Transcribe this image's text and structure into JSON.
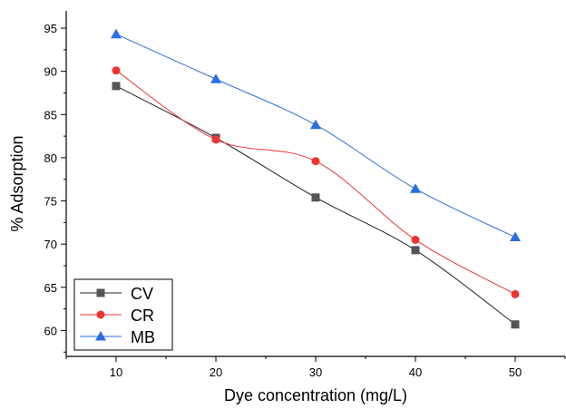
{
  "chart_data": {
    "type": "line",
    "title": "",
    "xlabel": "Dye concentration (mg/L)",
    "ylabel": "% Adsorption",
    "x": [
      10,
      20,
      30,
      40,
      50
    ],
    "xticks": [
      "10",
      "20",
      "30",
      "40",
      "50"
    ],
    "yticks": [
      "60",
      "65",
      "70",
      "75",
      "80",
      "85",
      "90",
      "95"
    ],
    "xlim": [
      5,
      55
    ],
    "ylim": [
      57,
      97
    ],
    "grid": false,
    "legend_position": "bottom-left",
    "series": [
      {
        "name": "CV",
        "values": [
          88.3,
          82.3,
          75.4,
          69.3,
          60.7
        ],
        "color": "#555555",
        "line_color": "#222222",
        "marker": "square"
      },
      {
        "name": "CR",
        "values": [
          90.1,
          82.1,
          79.6,
          70.5,
          64.2
        ],
        "color": "#ee3333",
        "line_color": "#ee3333",
        "marker": "circle"
      },
      {
        "name": "MB",
        "values": [
          94.3,
          89.1,
          83.8,
          76.4,
          70.8
        ],
        "color": "#2a6fe0",
        "line_color": "#2a6fe0",
        "marker": "triangle"
      }
    ]
  }
}
